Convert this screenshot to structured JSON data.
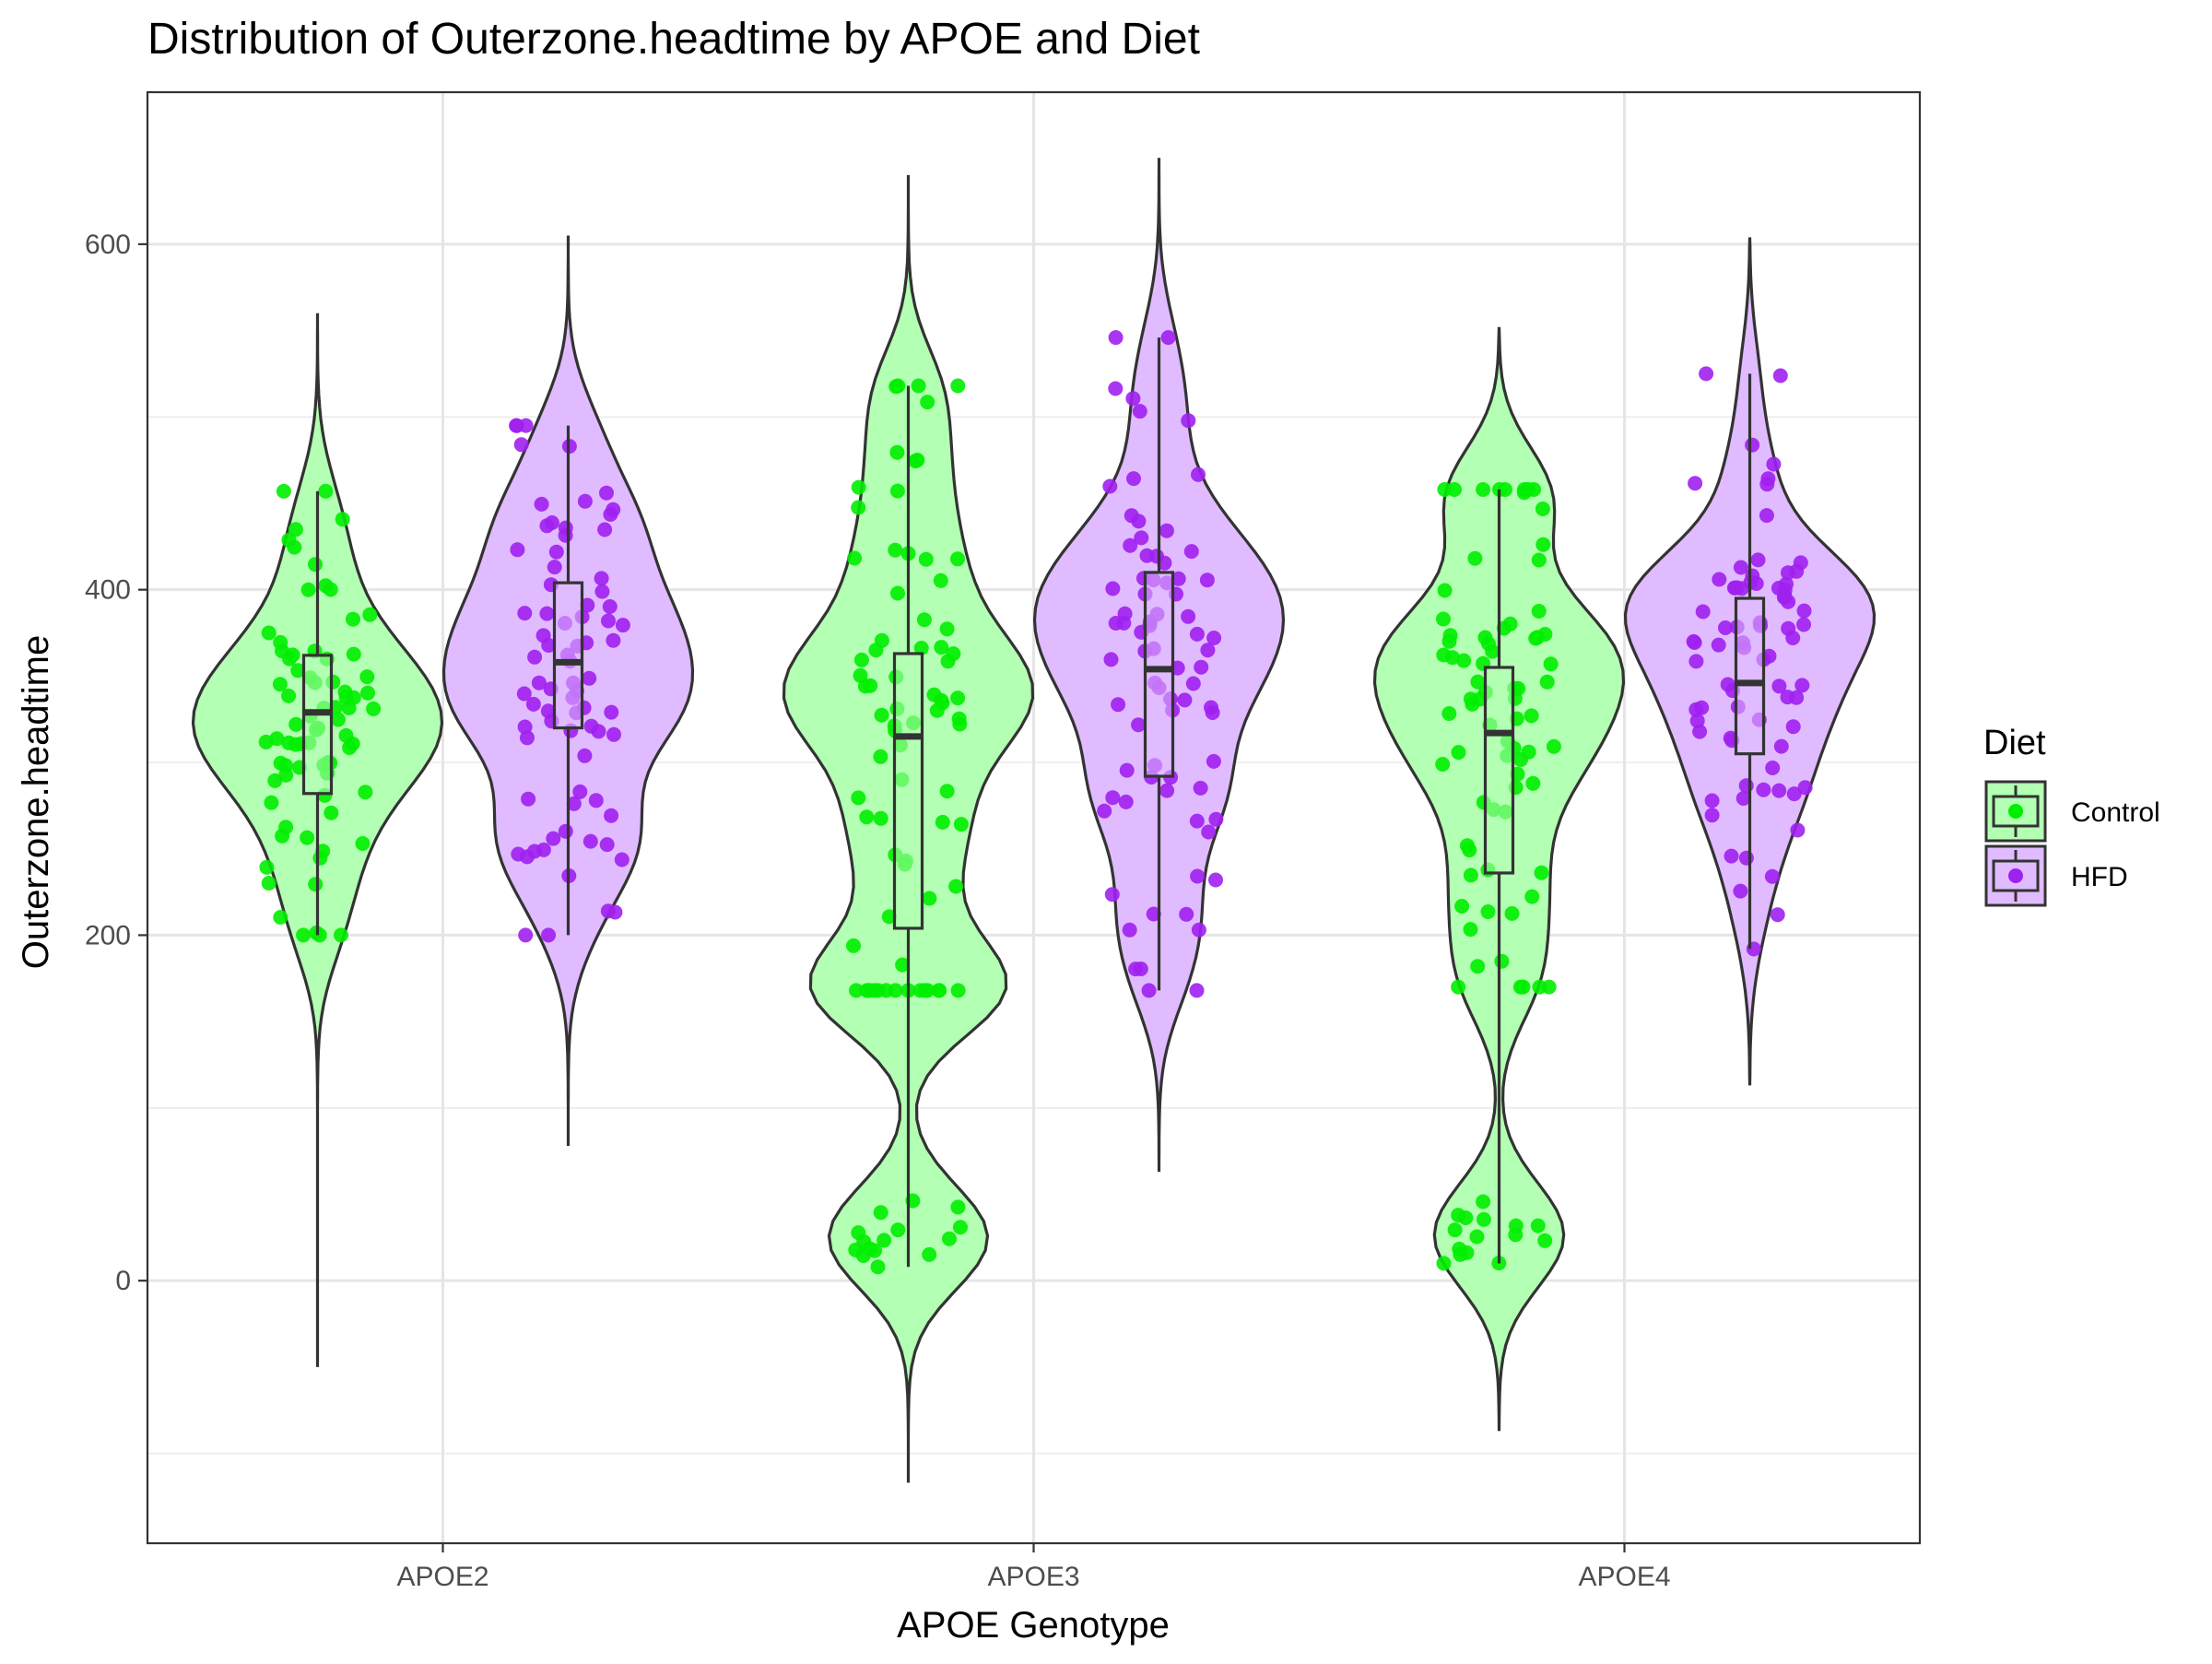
{
  "chart_data": {
    "type": "violin",
    "title": "Distribution of Outerzone.headtime by APOE and Diet",
    "xlabel": "APOE Genotype",
    "ylabel": "Outerzone.headtime",
    "categories": [
      "APOE2",
      "APOE3",
      "APOE4"
    ],
    "ylim": [
      -152,
      688
    ],
    "yticks": [
      0,
      200,
      400,
      600
    ],
    "grid": true,
    "legend": {
      "title": "Diet",
      "position": "right"
    },
    "series": [
      {
        "name": "Control",
        "fill": "#b3ffb3",
        "point_color": "#00ee00",
        "groups": [
          {
            "category": "APOE2",
            "violin_range": [
              -50,
              560
            ],
            "box": {
              "whisker_low": 200,
              "q1": 282,
              "median": 329,
              "q3": 362,
              "whisker_high": 457
            }
          },
          {
            "category": "APOE3",
            "violin_range": [
              -117,
              640
            ],
            "box": {
              "whisker_low": 8,
              "q1": 204,
              "median": 315,
              "q3": 363,
              "whisker_high": 518
            }
          },
          {
            "category": "APOE4",
            "violin_range": [
              -87,
              552
            ],
            "box": {
              "whisker_low": 10,
              "q1": 236,
              "median": 317,
              "q3": 355,
              "whisker_high": 458
            }
          }
        ]
      },
      {
        "name": "HFD",
        "fill": "#e0bbff",
        "point_color": "#a020f0",
        "groups": [
          {
            "category": "APOE2",
            "violin_range": [
              78,
              605
            ],
            "box": {
              "whisker_low": 200,
              "q1": 320,
              "median": 358,
              "q3": 404,
              "whisker_high": 495
            }
          },
          {
            "category": "APOE3",
            "violin_range": [
              63,
              650
            ],
            "box": {
              "whisker_low": 168,
              "q1": 292,
              "median": 354,
              "q3": 410,
              "whisker_high": 546
            }
          },
          {
            "category": "APOE4",
            "violin_range": [
              113,
              604
            ],
            "box": {
              "whisker_low": 192,
              "q1": 305,
              "median": 346,
              "q3": 395,
              "whisker_high": 525
            }
          }
        ]
      }
    ]
  }
}
